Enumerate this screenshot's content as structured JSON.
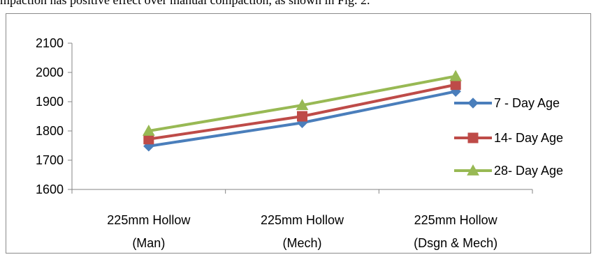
{
  "header_text": "mpaction has positive effect over manual compaction, as shown in Fig. 2.",
  "chart_data": {
    "type": "line",
    "title": "",
    "xlabel": "",
    "ylabel": "",
    "ylim": [
      1600,
      2100
    ],
    "yticks": [
      1600,
      1700,
      1800,
      1900,
      2000,
      2100
    ],
    "ytick_labels": [
      "1600",
      "1700",
      "1800",
      "1900",
      "2000",
      "2100"
    ],
    "categories": [
      [
        "225mm Hollow",
        "(Man)"
      ],
      [
        "225mm Hollow",
        "(Mech)"
      ],
      [
        "225mm Hollow",
        "(Dsgn & Mech)"
      ]
    ],
    "grid": false,
    "legend_position": "right",
    "series": [
      {
        "name": "7 - Day Age",
        "values": [
          1748,
          1828,
          1935
        ],
        "color": "#4A7EBB",
        "marker": "diamond"
      },
      {
        "name": "14- Day Age",
        "values": [
          1772,
          1850,
          1958
        ],
        "color": "#BE4B48",
        "marker": "square"
      },
      {
        "name": "28- Day Age",
        "values": [
          1800,
          1888,
          1987
        ],
        "color": "#98B954",
        "marker": "triangle"
      }
    ]
  }
}
